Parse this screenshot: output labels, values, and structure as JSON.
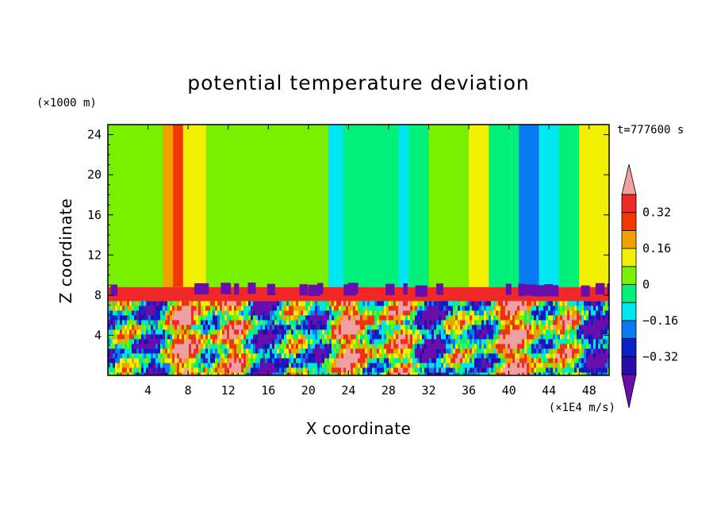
{
  "chart_data": {
    "type": "heatmap",
    "title": "potential temperature deviation",
    "xlabel": "X coordinate",
    "ylabel": "Z coordinate",
    "x_unit": "(×1E4 m/s)",
    "y_unit": "(×1000 m)",
    "time_label": "t=777600 s",
    "xlim": [
      0,
      50
    ],
    "ylim": [
      0,
      25
    ],
    "x_ticks": [
      "4",
      "8",
      "12",
      "16",
      "20",
      "24",
      "28",
      "32",
      "36",
      "40",
      "44",
      "48"
    ],
    "y_ticks": [
      "4",
      "8",
      "12",
      "16",
      "20",
      "24"
    ],
    "colorbar": {
      "levels": [
        -0.4,
        -0.32,
        -0.24,
        -0.16,
        -0.08,
        0,
        0.08,
        0.16,
        0.24,
        0.32,
        0.4
      ],
      "tick_labels": [
        "0.32",
        "0.16",
        "0",
        "−0.16",
        "−0.32"
      ],
      "tick_values": [
        0.32,
        0.16,
        0,
        -0.16,
        -0.32
      ],
      "colors": [
        "#6a0dad",
        "#2a0aa8",
        "#0a20c8",
        "#0a7af0",
        "#00e6f0",
        "#00f07a",
        "#78f000",
        "#f0f000",
        "#f0a000",
        "#f03800",
        "#f02828",
        "#f0a0a0"
      ]
    },
    "upper_layer": {
      "z_range": [
        8.8,
        25
      ],
      "columns": [
        {
          "x_start": 0,
          "x_end": 5.5,
          "value": 0.04
        },
        {
          "x_start": 5.5,
          "x_end": 6.5,
          "value": 0.2
        },
        {
          "x_start": 6.5,
          "x_end": 7.5,
          "value": 0.28
        },
        {
          "x_start": 7.5,
          "x_end": 9.8,
          "value": 0.12
        },
        {
          "x_start": 9.8,
          "x_end": 19,
          "value": 0.04
        },
        {
          "x_start": 19,
          "x_end": 22,
          "value": 0.04
        },
        {
          "x_start": 22,
          "x_end": 23.5,
          "value": -0.12
        },
        {
          "x_start": 23.5,
          "x_end": 29,
          "value": -0.04
        },
        {
          "x_start": 29,
          "x_end": 30,
          "value": -0.12
        },
        {
          "x_start": 30,
          "x_end": 32,
          "value": -0.04
        },
        {
          "x_start": 32,
          "x_end": 36,
          "value": 0.04
        },
        {
          "x_start": 36,
          "x_end": 38,
          "value": 0.12
        },
        {
          "x_start": 38,
          "x_end": 41,
          "value": -0.04
        },
        {
          "x_start": 41,
          "x_end": 43,
          "value": -0.2
        },
        {
          "x_start": 43,
          "x_end": 45,
          "value": -0.12
        },
        {
          "x_start": 45,
          "x_end": 47,
          "value": -0.04
        },
        {
          "x_start": 47,
          "x_end": 50,
          "value": 0.12
        }
      ]
    },
    "inversion_layer": {
      "z_range": [
        7.4,
        8.8
      ],
      "value": 0.36
    },
    "lower_layer": {
      "z_range": [
        0,
        7.4
      ],
      "pattern": "turbulent convective cells, values spanning -0.4 to 0.4"
    }
  }
}
